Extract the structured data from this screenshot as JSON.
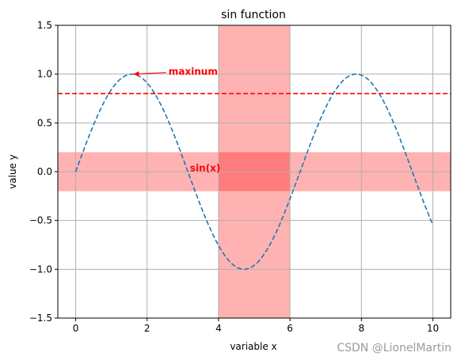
{
  "chart_data": {
    "type": "line",
    "title": "sin function",
    "xlabel": "variable x",
    "ylabel": "value y",
    "xlim": [
      -0.5,
      10.5
    ],
    "ylim": [
      -1.5,
      1.5
    ],
    "xticks": [
      0,
      2,
      4,
      6,
      8,
      10
    ],
    "xtick_labels": [
      "0",
      "2",
      "4",
      "6",
      "8",
      "10"
    ],
    "yticks": [
      -1.5,
      -1.0,
      -0.5,
      0.0,
      0.5,
      1.0,
      1.5
    ],
    "ytick_labels": [
      "−1.5",
      "−1.0",
      "−0.5",
      "0.0",
      "0.5",
      "1.0",
      "1.5"
    ],
    "grid": true,
    "series": [
      {
        "function": "sin(x)",
        "x_range": [
          0,
          10
        ],
        "color": "#1f77b4",
        "linestyle": "dashed"
      }
    ],
    "hline": {
      "y": 0.8,
      "color": "#ff0000",
      "linestyle": "dashed"
    },
    "hspan": {
      "ymin": -0.2,
      "ymax": 0.2,
      "color": "#ff0000",
      "alpha": 0.3
    },
    "vspan": {
      "xmin": 4,
      "xmax": 6,
      "color": "#ff0000",
      "alpha": 0.3
    },
    "annotations": [
      {
        "text": "maxinum",
        "xy": [
          1.5708,
          1.0
        ],
        "xytext": [
          2.6,
          1.0
        ],
        "color": "#ff0000",
        "arrow": true
      },
      {
        "text": "sin(x)",
        "xy": [
          3.2,
          0.0
        ],
        "color": "#ff0000",
        "arrow": false
      }
    ]
  },
  "watermark": "CSDN @LionelMartin"
}
